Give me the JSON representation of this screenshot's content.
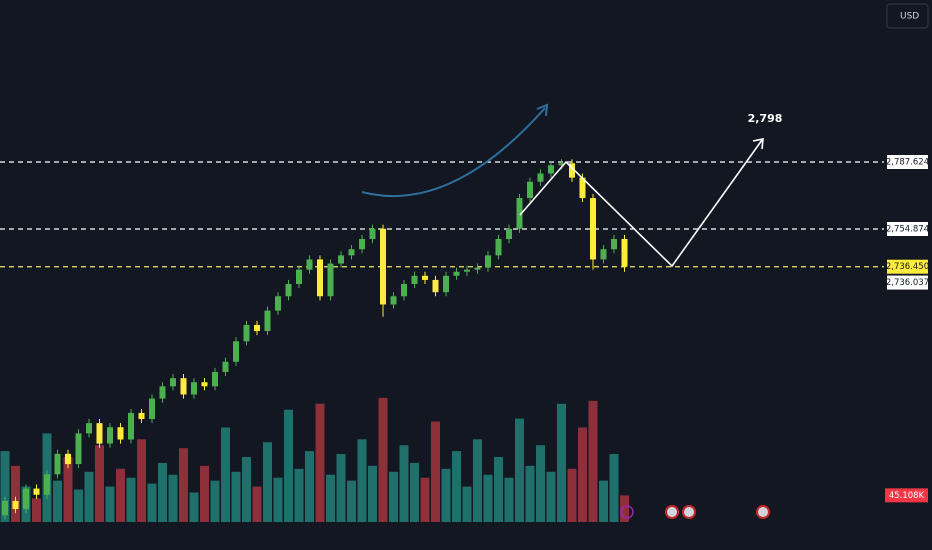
{
  "chart_data": {
    "type": "candlestick",
    "currency": "USD",
    "ylim": [
      2598,
      2866.8
    ],
    "vlim": [
      0,
      220000
    ],
    "up_color": "#4caf50",
    "down_color": "#ffeb3b",
    "volume_up_color": "#1f6f6b",
    "volume_down_color": "#8e3039",
    "levels": [
      {
        "value": 2787.624,
        "label": "2,787.624"
      },
      {
        "value": 2754.874,
        "label": "2,754.874"
      },
      {
        "value": 2736.45,
        "label": "2,736.450"
      }
    ],
    "current_price": {
      "value": 2736.037,
      "label": "2,736.037"
    },
    "target": {
      "value": 2798,
      "label": "2,798"
    },
    "open": [
      2615,
      2622,
      2618,
      2628,
      2625,
      2635,
      2645,
      2640,
      2655,
      2660,
      2650,
      2658,
      2652,
      2665,
      2662,
      2672,
      2678,
      2682,
      2674,
      2680,
      2678,
      2685,
      2690,
      2700,
      2708,
      2705,
      2715,
      2722,
      2728,
      2735,
      2740,
      2722,
      2738,
      2742,
      2745,
      2750,
      2755,
      2718,
      2722,
      2728,
      2732,
      2730,
      2724,
      2732,
      2734,
      2735,
      2736,
      2742,
      2750,
      2755,
      2770,
      2778,
      2782,
      2786,
      2787,
      2780,
      2770,
      2740,
      2745,
      2750
    ],
    "close": [
      2622,
      2618,
      2628,
      2625,
      2635,
      2645,
      2640,
      2655,
      2660,
      2650,
      2658,
      2652,
      2665,
      2662,
      2672,
      2678,
      2682,
      2674,
      2680,
      2678,
      2685,
      2690,
      2700,
      2708,
      2705,
      2715,
      2722,
      2728,
      2735,
      2740,
      2722,
      2738,
      2742,
      2745,
      2750,
      2755,
      2718,
      2722,
      2728,
      2732,
      2730,
      2724,
      2732,
      2734,
      2735,
      2736,
      2742,
      2750,
      2755,
      2770,
      2778,
      2782,
      2786,
      2787,
      2780,
      2770,
      2740,
      2745,
      2750,
      2736.45
    ],
    "high": [
      2624,
      2624,
      2630,
      2630,
      2637,
      2647,
      2647,
      2657,
      2662,
      2662,
      2660,
      2660,
      2667,
      2667,
      2674,
      2680,
      2684,
      2684,
      2682,
      2682,
      2687,
      2692,
      2702,
      2710,
      2710,
      2717,
      2724,
      2730,
      2737,
      2742,
      2742,
      2740,
      2744,
      2747,
      2752,
      2757,
      2757,
      2724,
      2730,
      2734,
      2734,
      2732,
      2734,
      2736,
      2737,
      2738,
      2744,
      2752,
      2757,
      2772,
      2780,
      2784,
      2788,
      2789,
      2789,
      2782,
      2772,
      2747,
      2752,
      2752
    ],
    "low": [
      2613,
      2616,
      2616,
      2623,
      2623,
      2633,
      2638,
      2638,
      2653,
      2648,
      2648,
      2650,
      2650,
      2660,
      2660,
      2670,
      2676,
      2672,
      2672,
      2676,
      2676,
      2683,
      2688,
      2698,
      2703,
      2703,
      2713,
      2720,
      2726,
      2733,
      2720,
      2720,
      2736,
      2740,
      2743,
      2748,
      2712,
      2716,
      2720,
      2726,
      2728,
      2722,
      2722,
      2730,
      2732,
      2733,
      2734,
      2740,
      2748,
      2753,
      2768,
      2776,
      2780,
      2784,
      2778,
      2768,
      2735,
      2738,
      2743,
      2734
    ],
    "volume": {
      "values": [
        120000,
        95000,
        60000,
        40000,
        150000,
        70000,
        110000,
        55000,
        85000,
        130000,
        60000,
        90000,
        75000,
        140000,
        65000,
        100000,
        80000,
        125000,
        50000,
        95000,
        70000,
        160000,
        85000,
        110000,
        60000,
        135000,
        75000,
        190000,
        90000,
        120000,
        200000,
        80000,
        115000,
        70000,
        140000,
        95000,
        210000,
        85000,
        130000,
        100000,
        75000,
        170000,
        90000,
        120000,
        60000,
        140000,
        80000,
        110000,
        75000,
        175000,
        95000,
        130000,
        85000,
        200000,
        90000,
        160000,
        205000,
        70000,
        115000,
        45108
      ],
      "last_label": "45.108K"
    }
  }
}
